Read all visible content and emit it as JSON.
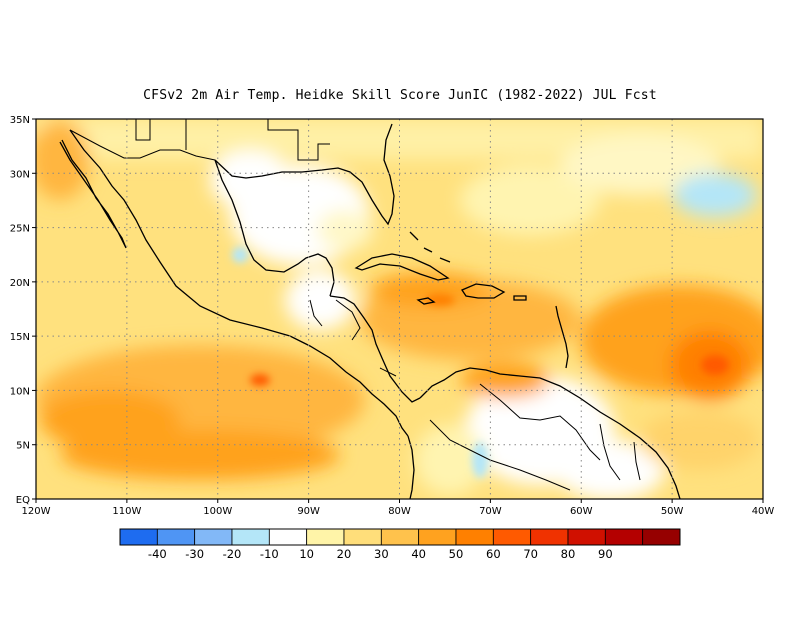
{
  "title": "CFSv2  2m Air Temp. Heidke Skill Score JunIC (1982-2022) JUL Fcst",
  "lat_labels": [
    "35N",
    "30N",
    "25N",
    "20N",
    "15N",
    "10N",
    "5N",
    "EQ"
  ],
  "lon_labels": [
    "120W",
    "110W",
    "100W",
    "90W",
    "80W",
    "70W",
    "60W",
    "50W",
    "40W"
  ],
  "colorbar": {
    "colors": [
      "#1e6cf0",
      "#4f95f4",
      "#82b8f7",
      "#b4e6f8",
      "#ffffff",
      "#fff4a8",
      "#ffde7a",
      "#ffc24c",
      "#ffa21f",
      "#ff8000",
      "#ff5a00",
      "#f03200",
      "#d01000",
      "#b40000",
      "#960000"
    ],
    "labels": [
      "-40",
      "-30",
      "-20",
      "-10",
      "10",
      "20",
      "30",
      "40",
      "50",
      "60",
      "70",
      "80",
      "90"
    ]
  },
  "map": {
    "lon_range": [
      -120,
      -40
    ],
    "lat_range": [
      0,
      35
    ],
    "grid": "dotted"
  }
}
